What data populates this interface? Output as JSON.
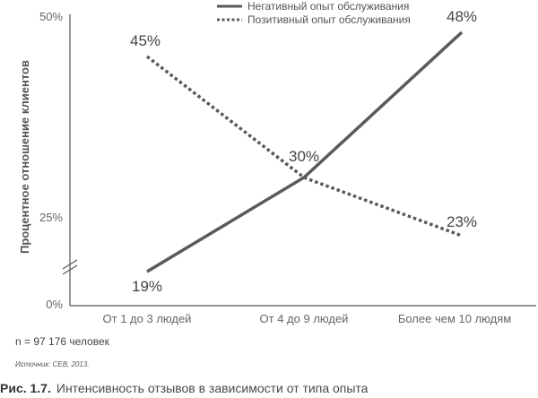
{
  "chart_data": {
    "type": "line",
    "categories": [
      "От 1 до 3 людей",
      "От 4 до 9 людей",
      "Более чем 10 людям"
    ],
    "series": [
      {
        "name": "Негативный опыт обслуживания",
        "values": [
          19,
          30,
          48
        ],
        "labels": [
          "19%",
          "30%",
          "48%"
        ],
        "style": "solid",
        "color": "#5a5a5a"
      },
      {
        "name": "Позитивный опыт обслуживания",
        "values": [
          45,
          30,
          23
        ],
        "labels": [
          "45%",
          "",
          "23%"
        ],
        "style": "dotted",
        "color": "#5a5a5a"
      }
    ],
    "ylabel": "Процентное отношение клиентов",
    "xlabel": "",
    "yticks": [
      "0%",
      "25%",
      "50%"
    ],
    "ylim": [
      0,
      50
    ],
    "axis_break": true,
    "legend_position": "top"
  },
  "note": "n = 97 176 человек",
  "source": "Источник: CEB, 2013.",
  "caption": {
    "label": "Рис. 1.7.",
    "text": "Интенсивность отзывов в зависимости от типа опыта"
  }
}
